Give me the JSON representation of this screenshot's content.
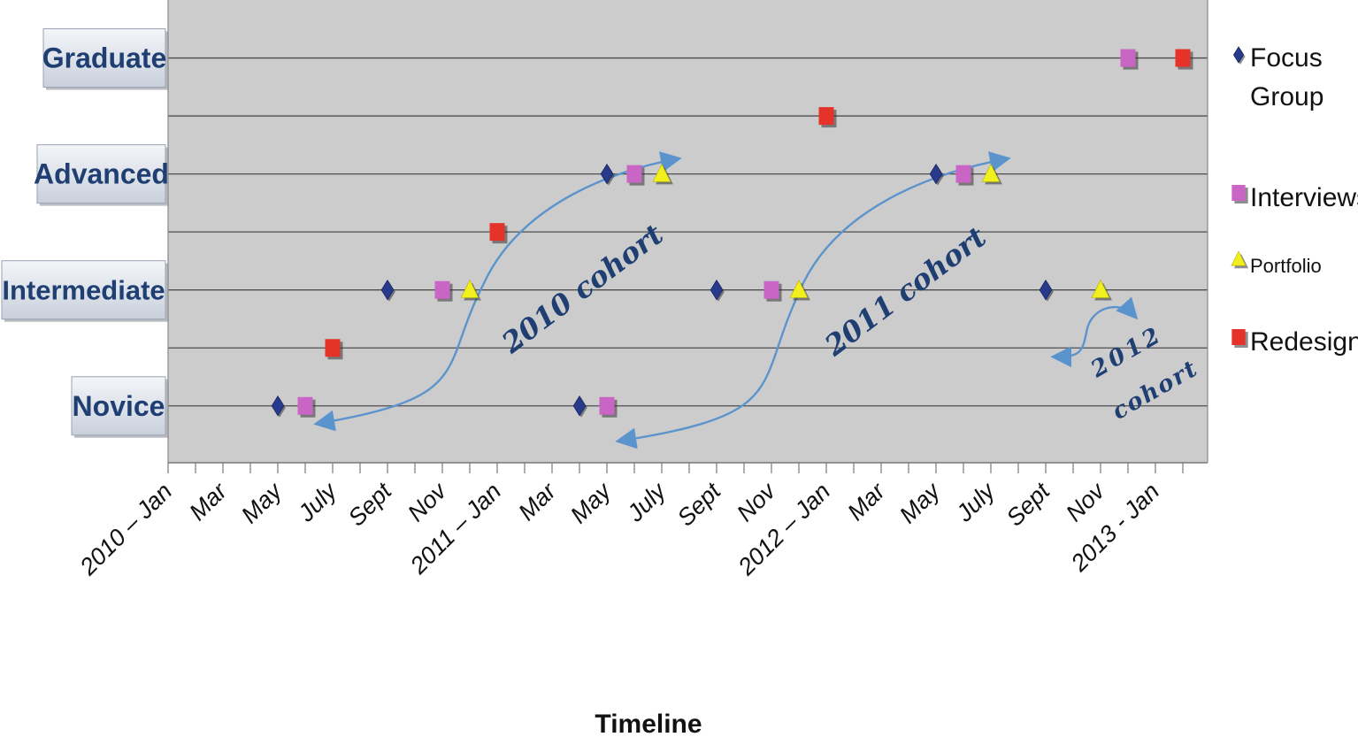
{
  "chart_data": {
    "type": "scatter",
    "xlabel": "Timeline",
    "x_ticks": [
      "2010 – Jan",
      "Mar",
      "May",
      "July",
      "Sept",
      "Nov",
      "2011 – Jan",
      "Mar",
      "May",
      "July",
      "Sept",
      "Nov",
      "2012 – Jan",
      "Mar",
      "May",
      "July",
      "Sept",
      "Nov",
      "2013 - Jan"
    ],
    "x_range": [
      "2010-01",
      "2013-02"
    ],
    "levels": [
      {
        "name": "Novice",
        "value": 1
      },
      {
        "name": "Intermediate",
        "value": 3
      },
      {
        "name": "Advanced",
        "value": 5
      },
      {
        "name": "Graduate",
        "value": 7
      }
    ],
    "y_range": [
      0.02,
      8
    ],
    "grid": "horizontal",
    "legend": "right",
    "series": [
      {
        "name": "Focus Group",
        "marker": "diamond",
        "color": "#283a8c",
        "points": [
          {
            "x": "2010-05",
            "level": 1
          },
          {
            "x": "2010-09",
            "level": 3
          },
          {
            "x": "2011-04",
            "level": 1
          },
          {
            "x": "2011-05",
            "level": 5
          },
          {
            "x": "2011-09",
            "level": 3
          },
          {
            "x": "2012-05",
            "level": 5
          },
          {
            "x": "2012-09",
            "level": 3
          }
        ]
      },
      {
        "name": "Interviews",
        "marker": "square",
        "color": "#c965c5",
        "points": [
          {
            "x": "2010-06",
            "level": 1
          },
          {
            "x": "2010-11",
            "level": 3
          },
          {
            "x": "2011-05",
            "level": 1
          },
          {
            "x": "2011-06",
            "level": 5
          },
          {
            "x": "2011-11",
            "level": 3
          },
          {
            "x": "2012-06",
            "level": 5
          },
          {
            "x": "2012-12",
            "level": 7
          }
        ]
      },
      {
        "name": "Portfolio",
        "marker": "triangle",
        "color": "#f2ef1e",
        "points": [
          {
            "x": "2010-12",
            "level": 3
          },
          {
            "x": "2011-07",
            "level": 5
          },
          {
            "x": "2011-12",
            "level": 3
          },
          {
            "x": "2012-07",
            "level": 5
          },
          {
            "x": "2012-11",
            "level": 3
          }
        ]
      },
      {
        "name": "Redesign",
        "marker": "square",
        "color": "#e5332a",
        "points": [
          {
            "x": "2010-07",
            "level": 2
          },
          {
            "x": "2011-01",
            "level": 4
          },
          {
            "x": "2012-01",
            "level": 6
          },
          {
            "x": "2013-02",
            "level": 7
          }
        ]
      }
    ],
    "annotations": [
      {
        "text": "2010 cohort",
        "from": {
          "x": "2010-06",
          "level": 1
        },
        "to": {
          "x": "2011-07",
          "level": 5.2
        }
      },
      {
        "text": "2011 cohort",
        "from": {
          "x": "2011-05",
          "level": 0.7
        },
        "to": {
          "x": "2012-07",
          "level": 5.2
        }
      },
      {
        "text": "2012",
        "line2": "cohort",
        "from": {
          "x": "2012-09",
          "level": 2
        },
        "to": {
          "x": "2012-12",
          "level": 3
        }
      }
    ]
  },
  "legend_items": [
    {
      "label": "Focus",
      "label2": "Group",
      "marker": "diamond",
      "color": "#283a8c"
    },
    {
      "label": "Interviews",
      "marker": "square",
      "color": "#c965c5"
    },
    {
      "label": "Portfolio",
      "marker": "triangle",
      "color": "#f2ef1e"
    },
    {
      "label": "Redesign",
      "marker": "square",
      "color": "#e5332a"
    }
  ],
  "colors": {
    "plot_bg": "#cccccd",
    "grid": "#4e4e4e",
    "arrow": "#5b94cc",
    "label_bg": "#dde2ea",
    "label_text": "#1f3f73"
  }
}
